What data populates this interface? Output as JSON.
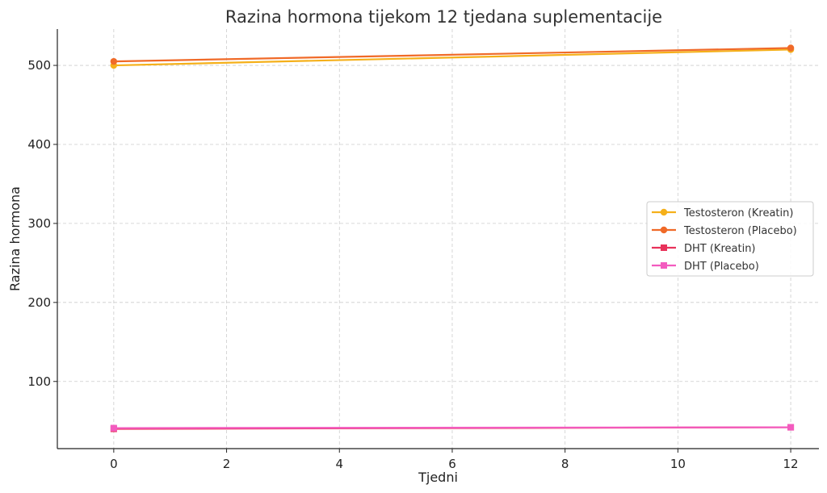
{
  "chart_data": {
    "type": "line",
    "title": "Razina hormona tijekom 12 tjedana suplementacije",
    "xlabel": "Tjedni",
    "ylabel": "Razina hormona",
    "xlim": [
      -1,
      12.5
    ],
    "ylim": [
      15,
      546
    ],
    "xticks": [
      0,
      2,
      4,
      6,
      8,
      10,
      12
    ],
    "yticks": [
      100,
      200,
      300,
      400,
      500
    ],
    "grid": true,
    "legend_position": "center-right",
    "series": [
      {
        "name": "Testosteron (Kreatin)",
        "color": "#f5b01a",
        "marker": "circle",
        "x": [
          0,
          12
        ],
        "y": [
          500,
          520
        ]
      },
      {
        "name": "Testosteron (Placebo)",
        "color": "#f06a28",
        "marker": "circle",
        "x": [
          0,
          12
        ],
        "y": [
          505,
          522
        ]
      },
      {
        "name": "DHT (Kreatin)",
        "color": "#e8325a",
        "marker": "square",
        "x": [
          0,
          12
        ],
        "y": [
          40,
          42
        ]
      },
      {
        "name": "DHT (Placebo)",
        "color": "#f35bbf",
        "marker": "square",
        "x": [
          0,
          12
        ],
        "y": [
          41,
          42
        ]
      }
    ]
  }
}
